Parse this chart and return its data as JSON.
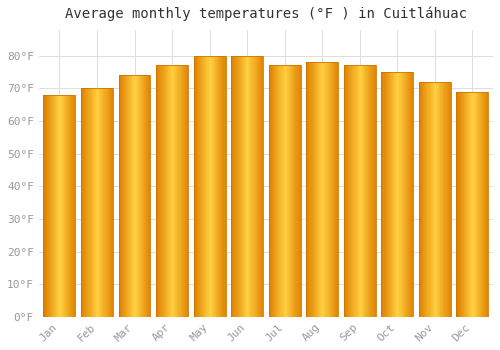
{
  "title": "Average monthly temperatures (°F ) in Cuitláhuac",
  "months": [
    "Jan",
    "Feb",
    "Mar",
    "Apr",
    "May",
    "Jun",
    "Jul",
    "Aug",
    "Sep",
    "Oct",
    "Nov",
    "Dec"
  ],
  "values": [
    68,
    70,
    74,
    77,
    80,
    80,
    77,
    78,
    77,
    75,
    72,
    69
  ],
  "bar_color_center": "#FFD040",
  "bar_color_edge": "#E08000",
  "background_color": "#ffffff",
  "grid_color": "#dddddd",
  "ylim": [
    0,
    88
  ],
  "yticks": [
    0,
    10,
    20,
    30,
    40,
    50,
    60,
    70,
    80
  ],
  "title_fontsize": 10,
  "tick_fontsize": 8,
  "tick_label_color": "#999999",
  "font_family": "monospace",
  "bar_width": 0.85
}
